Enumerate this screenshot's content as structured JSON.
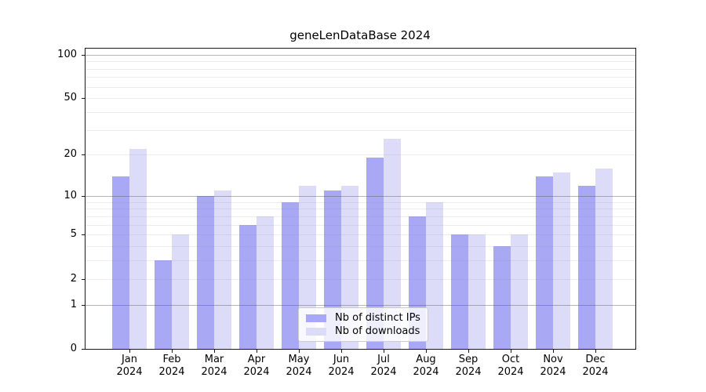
{
  "title": "geneLenDataBase 2024",
  "chart_data": {
    "type": "bar",
    "title": "geneLenDataBase 2024",
    "categories": [
      "Jan",
      "Feb",
      "Mar",
      "Apr",
      "May",
      "Jun",
      "Jul",
      "Aug",
      "Sep",
      "Oct",
      "Nov",
      "Dec"
    ],
    "x_tick_second_line": "2024",
    "series": [
      {
        "name": "Nb of distinct IPs",
        "color": "#a8a8f5",
        "values": [
          14,
          3,
          10,
          6,
          9,
          11,
          19,
          7,
          5,
          4,
          14,
          12
        ]
      },
      {
        "name": "Nb of downloads",
        "color": "#dcdcf9",
        "values": [
          22,
          5,
          11,
          7,
          12,
          12,
          26,
          9,
          5,
          5,
          15,
          16
        ]
      }
    ],
    "y_axis": {
      "scale": "log1p",
      "tick_values": [
        0,
        1,
        2,
        5,
        10,
        20,
        50,
        100
      ],
      "tick_labels": [
        "0",
        "1",
        "2",
        "5",
        "10",
        "20",
        "50",
        "100"
      ],
      "major_gridlines": [
        1,
        10,
        100
      ],
      "minor_gridlines": [
        2,
        3,
        4,
        5,
        6,
        7,
        8,
        9,
        20,
        30,
        40,
        50,
        60,
        70,
        80,
        90
      ],
      "range": [
        0,
        112
      ]
    },
    "legend": {
      "position": "lower center"
    },
    "grid": true
  },
  "colors": {
    "background": "#ffffff",
    "axis": "#1a1a1a",
    "bar_distinct_ips": "#a8a8f5",
    "bar_downloads": "#dcdcf9",
    "legend_border": "#cccccc"
  }
}
